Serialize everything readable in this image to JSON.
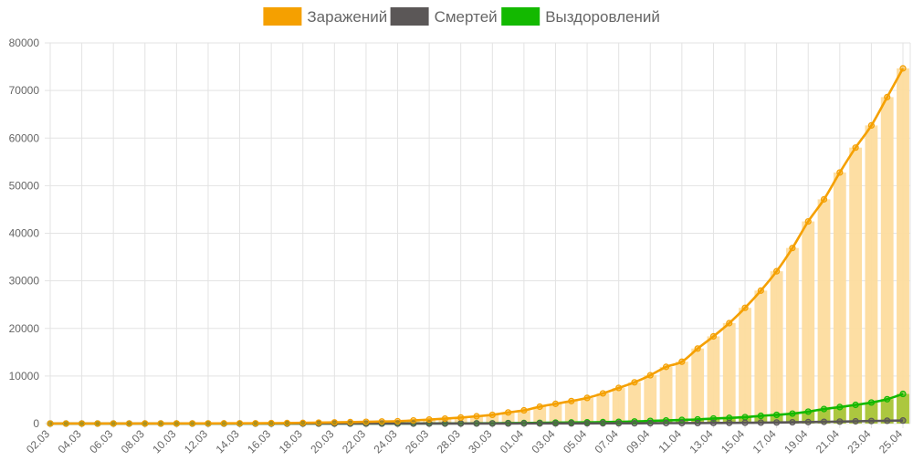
{
  "chart_data": {
    "type": "line",
    "legend_position": "top",
    "grid": true,
    "ylim": [
      0,
      80000
    ],
    "y_ticks": [
      0,
      10000,
      20000,
      30000,
      40000,
      50000,
      60000,
      70000,
      80000
    ],
    "categories": [
      "02.03",
      "03.03",
      "04.03",
      "05.03",
      "06.03",
      "07.03",
      "08.03",
      "09.03",
      "10.03",
      "11.03",
      "12.03",
      "13.03",
      "14.03",
      "15.03",
      "16.03",
      "17.03",
      "18.03",
      "19.03",
      "20.03",
      "21.03",
      "22.03",
      "23.03",
      "24.03",
      "25.03",
      "26.03",
      "27.03",
      "28.03",
      "29.03",
      "30.03",
      "31.03",
      "01.04",
      "02.04",
      "03.04",
      "04.04",
      "05.04",
      "06.04",
      "07.04",
      "08.04",
      "09.04",
      "10.04",
      "11.04",
      "12.04",
      "13.04",
      "14.04",
      "15.04",
      "16.04",
      "17.04",
      "18.04",
      "19.04",
      "20.04",
      "21.04",
      "22.04",
      "23.04",
      "24.04",
      "25.04"
    ],
    "x_tick_labels": [
      "02.03",
      "04.03",
      "06.03",
      "08.03",
      "10.03",
      "12.03",
      "14.03",
      "16.03",
      "18.03",
      "20.03",
      "22.03",
      "24.03",
      "26.03",
      "28.03",
      "30.03",
      "01.04",
      "03.04",
      "05.04",
      "07.04",
      "09.04",
      "11.04",
      "13.04",
      "15.04",
      "17.04",
      "19.04",
      "21.04",
      "23.04",
      "25.04"
    ],
    "series": [
      {
        "name": "Заражений",
        "color": "#f5a000",
        "bar_color": "#fddc9e",
        "bars": true,
        "values": [
          3,
          3,
          3,
          3,
          10,
          13,
          17,
          17,
          20,
          28,
          34,
          45,
          59,
          63,
          90,
          114,
          147,
          199,
          253,
          306,
          367,
          438,
          495,
          658,
          840,
          1036,
          1264,
          1534,
          1836,
          2337,
          2777,
          3548,
          4149,
          4731,
          5389,
          6343,
          7497,
          8672,
          10158,
          11917,
          13002,
          15770,
          18328,
          21102,
          24324,
          27938,
          32008,
          36897,
          42480,
          47121,
          52763,
          57999,
          62658,
          68606,
          74651
        ]
      },
      {
        "name": "Смертей",
        "color": "#5b5757",
        "bars": false,
        "values": [
          0,
          0,
          0,
          0,
          0,
          0,
          0,
          0,
          0,
          0,
          0,
          0,
          0,
          0,
          0,
          0,
          0,
          1,
          1,
          1,
          1,
          1,
          1,
          3,
          3,
          4,
          4,
          8,
          9,
          17,
          24,
          29,
          34,
          43,
          45,
          47,
          58,
          66,
          76,
          94,
          99,
          106,
          130,
          147,
          166,
          204,
          229,
          278,
          313,
          366,
          416,
          478,
          538,
          596,
          642
        ]
      },
      {
        "name": "Выздоровлений",
        "color": "#13b900",
        "bar_color": "#a8c53a",
        "bars": true,
        "values": [
          0,
          0,
          0,
          0,
          0,
          0,
          0,
          0,
          0,
          0,
          0,
          0,
          0,
          0,
          0,
          0,
          0,
          0,
          2,
          12,
          14,
          16,
          16,
          22,
          31,
          38,
          46,
          51,
          59,
          101,
          121,
          150,
          196,
          233,
          265,
          306,
          366,
          436,
          560,
          651,
          763,
          874,
          1064,
          1201,
          1358,
          1627,
          1827,
          2095,
          2510,
          3060,
          3471,
          3930,
          4421,
          5124,
          6231
        ]
      }
    ]
  }
}
